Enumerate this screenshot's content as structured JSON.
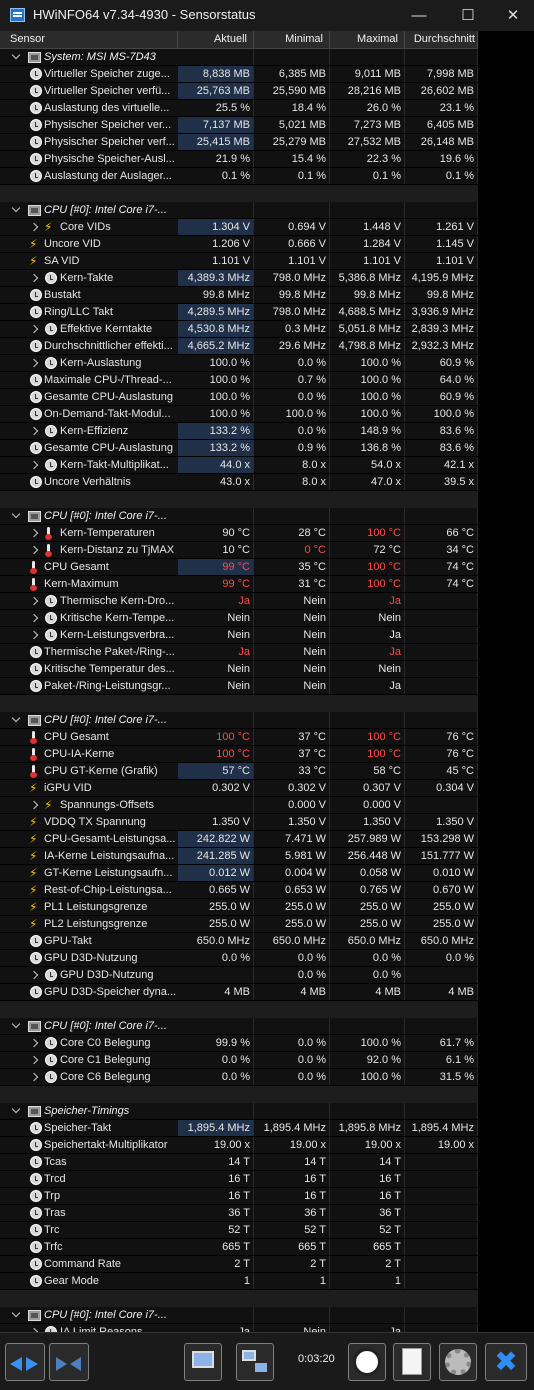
{
  "window": {
    "title": "HWiNFO64 v7.34-4930 - Sensorstatus",
    "minimize_glyph": "—",
    "maximize_glyph": "☐",
    "close_glyph": "✕"
  },
  "columns": [
    "Sensor",
    "Aktuell",
    "Minimal",
    "Maximal",
    "Durchschnitt"
  ],
  "rows": [
    {
      "kind": "group",
      "name": "System: MSI MS-7D43"
    },
    {
      "kind": "item",
      "icon": "clock-icon",
      "name": "Virtueller Speicher zuge...",
      "v": [
        "8,838 MB",
        "6,385 MB",
        "9,011 MB",
        "7,998 MB"
      ],
      "hl": true
    },
    {
      "kind": "item",
      "icon": "clock-icon",
      "name": "Virtueller Speicher verfü...",
      "v": [
        "25,763 MB",
        "25,590 MB",
        "28,216 MB",
        "26,602 MB"
      ],
      "hl": true
    },
    {
      "kind": "item",
      "icon": "clock-icon",
      "name": "Auslastung des virtuelle...",
      "v": [
        "25.5 %",
        "18.4 %",
        "26.0 %",
        "23.1 %"
      ]
    },
    {
      "kind": "item",
      "icon": "clock-icon",
      "name": "Physischer Speicher ver...",
      "v": [
        "7,137 MB",
        "5,021 MB",
        "7,273 MB",
        "6,405 MB"
      ],
      "hl": true
    },
    {
      "kind": "item",
      "icon": "clock-icon",
      "name": "Physischer Speicher verf...",
      "v": [
        "25,415 MB",
        "25,279 MB",
        "27,532 MB",
        "26,148 MB"
      ],
      "hl": true
    },
    {
      "kind": "item",
      "icon": "clock-icon",
      "name": "Physische Speicher-Ausl...",
      "v": [
        "21.9 %",
        "15.4 %",
        "22.3 %",
        "19.6 %"
      ]
    },
    {
      "kind": "item",
      "icon": "clock-icon",
      "name": "Auslastung der Auslager...",
      "v": [
        "0.1 %",
        "0.1 %",
        "0.1 %",
        "0.1 %"
      ]
    },
    {
      "kind": "sep"
    },
    {
      "kind": "group",
      "name": "CPU [#0]: Intel Core i7-..."
    },
    {
      "kind": "sub",
      "icon": "bolt-icon",
      "name": "Core VIDs",
      "v": [
        "1.304 V",
        "0.694 V",
        "1.448 V",
        "1.261 V"
      ],
      "hl": true
    },
    {
      "kind": "item",
      "icon": "bolt-icon",
      "name": "Uncore VID",
      "v": [
        "1.206 V",
        "0.666 V",
        "1.284 V",
        "1.145 V"
      ]
    },
    {
      "kind": "item",
      "icon": "bolt-icon",
      "name": "SA VID",
      "v": [
        "1.101 V",
        "1.101 V",
        "1.101 V",
        "1.101 V"
      ]
    },
    {
      "kind": "sub",
      "icon": "clock-icon",
      "name": "Kern-Takte",
      "v": [
        "4,389.3 MHz",
        "798.0 MHz",
        "5,386.8 MHz",
        "4,195.9 MHz"
      ],
      "hl": true
    },
    {
      "kind": "item",
      "icon": "clock-icon",
      "name": "Bustakt",
      "v": [
        "99.8 MHz",
        "99.8 MHz",
        "99.8 MHz",
        "99.8 MHz"
      ]
    },
    {
      "kind": "item",
      "icon": "clock-icon",
      "name": "Ring/LLC Takt",
      "v": [
        "4,289.5 MHz",
        "798.0 MHz",
        "4,688.5 MHz",
        "3,936.9 MHz"
      ],
      "hl": true
    },
    {
      "kind": "sub",
      "icon": "clock-icon",
      "name": "Effektive Kerntakte",
      "v": [
        "4,530.8 MHz",
        "0.3 MHz",
        "5,051.8 MHz",
        "2,839.3 MHz"
      ],
      "hl": true
    },
    {
      "kind": "item",
      "icon": "clock-icon",
      "name": "Durchschnittlicher effekti...",
      "v": [
        "4,665.2 MHz",
        "29.6 MHz",
        "4,798.8 MHz",
        "2,932.3 MHz"
      ],
      "hl": true
    },
    {
      "kind": "sub",
      "icon": "clock-icon",
      "name": "Kern-Auslastung",
      "v": [
        "100.0 %",
        "0.0 %",
        "100.0 %",
        "60.9 %"
      ]
    },
    {
      "kind": "item",
      "icon": "clock-icon",
      "name": "Maximale CPU-/Thread-...",
      "v": [
        "100.0 %",
        "0.7 %",
        "100.0 %",
        "64.0 %"
      ]
    },
    {
      "kind": "item",
      "icon": "clock-icon",
      "name": "Gesamte CPU-Auslastung",
      "v": [
        "100.0 %",
        "0.0 %",
        "100.0 %",
        "60.9 %"
      ]
    },
    {
      "kind": "item",
      "icon": "clock-icon",
      "name": "On-Demand-Takt-Modul...",
      "v": [
        "100.0 %",
        "100.0 %",
        "100.0 %",
        "100.0 %"
      ]
    },
    {
      "kind": "sub",
      "icon": "clock-icon",
      "name": "Kern-Effizienz",
      "v": [
        "133.2 %",
        "0.0 %",
        "148.9 %",
        "83.6 %"
      ],
      "hl": true
    },
    {
      "kind": "item",
      "icon": "clock-icon",
      "name": "Gesamte CPU-Auslastung",
      "v": [
        "133.2 %",
        "0.9 %",
        "136.8 %",
        "83.6 %"
      ],
      "hl": true
    },
    {
      "kind": "sub",
      "icon": "clock-icon",
      "name": "Kern-Takt-Multiplikat...",
      "v": [
        "44.0 x",
        "8.0 x",
        "54.0 x",
        "42.1 x"
      ],
      "hl": true
    },
    {
      "kind": "item",
      "icon": "clock-icon",
      "name": "Uncore Verhältnis",
      "v": [
        "43.0 x",
        "8.0 x",
        "47.0 x",
        "39.5 x"
      ]
    },
    {
      "kind": "sep"
    },
    {
      "kind": "group",
      "name": "CPU [#0]: Intel Core i7-..."
    },
    {
      "kind": "sub",
      "icon": "thermometer-icon",
      "name": "Kern-Temperaturen",
      "v": [
        "90 °C",
        "28 °C",
        "100 °C",
        "66 °C"
      ],
      "red": [
        2
      ]
    },
    {
      "kind": "sub",
      "icon": "thermometer-icon",
      "name": "Kern-Distanz zu TjMAX",
      "v": [
        "10 °C",
        "0 °C",
        "72 °C",
        "34 °C"
      ],
      "red": [
        1
      ]
    },
    {
      "kind": "item",
      "icon": "thermometer-icon",
      "name": "CPU Gesamt",
      "v": [
        "99 °C",
        "35 °C",
        "100 °C",
        "74 °C"
      ],
      "red": [
        0,
        2
      ],
      "hl": true
    },
    {
      "kind": "item",
      "icon": "thermometer-icon",
      "name": "Kern-Maximum",
      "v": [
        "99 °C",
        "31 °C",
        "100 °C",
        "74 °C"
      ],
      "red": [
        0,
        2
      ]
    },
    {
      "kind": "sub",
      "icon": "clock-icon",
      "name": "Thermische Kern-Dro...",
      "v": [
        "Ja",
        "Nein",
        "Ja",
        ""
      ],
      "red": [
        0,
        2
      ]
    },
    {
      "kind": "sub",
      "icon": "clock-icon",
      "name": "Kritische Kern-Tempe...",
      "v": [
        "Nein",
        "Nein",
        "Nein",
        ""
      ]
    },
    {
      "kind": "sub",
      "icon": "clock-icon",
      "name": "Kern-Leistungsverbra...",
      "v": [
        "Nein",
        "Nein",
        "Ja",
        ""
      ]
    },
    {
      "kind": "item",
      "icon": "clock-icon",
      "name": "Thermische Paket-/Ring-...",
      "v": [
        "Ja",
        "Nein",
        "Ja",
        ""
      ],
      "red": [
        0,
        2
      ]
    },
    {
      "kind": "item",
      "icon": "clock-icon",
      "name": "Kritische Temperatur des...",
      "v": [
        "Nein",
        "Nein",
        "Nein",
        ""
      ]
    },
    {
      "kind": "item",
      "icon": "clock-icon",
      "name": "Paket-/Ring-Leistungsgr...",
      "v": [
        "Nein",
        "Nein",
        "Ja",
        ""
      ]
    },
    {
      "kind": "sep"
    },
    {
      "kind": "group",
      "name": "CPU [#0]: Intel Core i7-..."
    },
    {
      "kind": "item",
      "icon": "thermometer-icon",
      "name": "CPU Gesamt",
      "v": [
        "100 °C",
        "37 °C",
        "100 °C",
        "76 °C"
      ],
      "red": [
        0,
        2
      ]
    },
    {
      "kind": "item",
      "icon": "thermometer-icon",
      "name": "CPU-IA-Kerne",
      "v": [
        "100 °C",
        "37 °C",
        "100 °C",
        "76 °C"
      ],
      "red": [
        0,
        2
      ]
    },
    {
      "kind": "item",
      "icon": "thermometer-icon",
      "name": "CPU GT-Kerne (Grafik)",
      "v": [
        "57 °C",
        "33 °C",
        "58 °C",
        "45 °C"
      ],
      "hl": true
    },
    {
      "kind": "item",
      "icon": "bolt-icon",
      "name": "iGPU VID",
      "v": [
        "0.302 V",
        "0.302 V",
        "0.307 V",
        "0.304 V"
      ]
    },
    {
      "kind": "sub",
      "icon": "bolt-icon",
      "name": "Spannungs-Offsets",
      "v": [
        "",
        "0.000 V",
        "0.000 V",
        ""
      ]
    },
    {
      "kind": "item",
      "icon": "bolt-icon",
      "name": "VDDQ TX Spannung",
      "v": [
        "1.350 V",
        "1.350 V",
        "1.350 V",
        "1.350 V"
      ]
    },
    {
      "kind": "item",
      "icon": "bolt-icon",
      "name": "CPU-Gesamt-Leistungsa...",
      "v": [
        "242.822 W",
        "7.471 W",
        "257.989 W",
        "153.298 W"
      ],
      "hl": true
    },
    {
      "kind": "item",
      "icon": "bolt-icon",
      "name": "IA-Kerne Leistungsaufna...",
      "v": [
        "241.285 W",
        "5.981 W",
        "256.448 W",
        "151.777 W"
      ],
      "hl": true
    },
    {
      "kind": "item",
      "icon": "bolt-icon",
      "name": "GT-Kerne Leistungsaufn...",
      "v": [
        "0.012 W",
        "0.004 W",
        "0.058 W",
        "0.010 W"
      ],
      "hl": true
    },
    {
      "kind": "item",
      "icon": "bolt-icon",
      "name": "Rest-of-Chip-Leistungsa...",
      "v": [
        "0.665 W",
        "0.653 W",
        "0.765 W",
        "0.670 W"
      ]
    },
    {
      "kind": "item",
      "icon": "bolt-icon",
      "name": "PL1 Leistungsgrenze",
      "v": [
        "255.0 W",
        "255.0 W",
        "255.0 W",
        "255.0 W"
      ]
    },
    {
      "kind": "item",
      "icon": "bolt-icon",
      "name": "PL2 Leistungsgrenze",
      "v": [
        "255.0 W",
        "255.0 W",
        "255.0 W",
        "255.0 W"
      ]
    },
    {
      "kind": "item",
      "icon": "clock-icon",
      "name": "GPU-Takt",
      "v": [
        "650.0 MHz",
        "650.0 MHz",
        "650.0 MHz",
        "650.0 MHz"
      ]
    },
    {
      "kind": "item",
      "icon": "clock-icon",
      "name": "GPU D3D-Nutzung",
      "v": [
        "0.0 %",
        "0.0 %",
        "0.0 %",
        "0.0 %"
      ]
    },
    {
      "kind": "sub",
      "icon": "clock-icon",
      "name": "GPU D3D-Nutzung",
      "v": [
        "",
        "0.0 %",
        "0.0 %",
        ""
      ]
    },
    {
      "kind": "item",
      "icon": "clock-icon",
      "name": "GPU D3D-Speicher dyna...",
      "v": [
        "4 MB",
        "4 MB",
        "4 MB",
        "4 MB"
      ]
    },
    {
      "kind": "sep"
    },
    {
      "kind": "group",
      "name": "CPU [#0]: Intel Core i7-..."
    },
    {
      "kind": "sub",
      "icon": "clock-icon",
      "name": "Core C0 Belegung",
      "v": [
        "99.9 %",
        "0.0 %",
        "100.0 %",
        "61.7 %"
      ]
    },
    {
      "kind": "sub",
      "icon": "clock-icon",
      "name": "Core C1 Belegung",
      "v": [
        "0.0 %",
        "0.0 %",
        "92.0 %",
        "6.1 %"
      ]
    },
    {
      "kind": "sub",
      "icon": "clock-icon",
      "name": "Core C6 Belegung",
      "v": [
        "0.0 %",
        "0.0 %",
        "100.0 %",
        "31.5 %"
      ]
    },
    {
      "kind": "sep"
    },
    {
      "kind": "group",
      "name": "Speicher-Timings"
    },
    {
      "kind": "item",
      "icon": "clock-icon",
      "name": "Speicher-Takt",
      "v": [
        "1,895.4 MHz",
        "1,895.4 MHz",
        "1,895.8 MHz",
        "1,895.4 MHz"
      ],
      "hl": true
    },
    {
      "kind": "item",
      "icon": "clock-icon",
      "name": "Speichertakt-Multiplikator",
      "v": [
        "19.00 x",
        "19.00 x",
        "19.00 x",
        "19.00 x"
      ]
    },
    {
      "kind": "item",
      "icon": "clock-icon",
      "name": "Tcas",
      "v": [
        "14 T",
        "14 T",
        "14 T",
        ""
      ]
    },
    {
      "kind": "item",
      "icon": "clock-icon",
      "name": "Trcd",
      "v": [
        "16 T",
        "16 T",
        "16 T",
        ""
      ]
    },
    {
      "kind": "item",
      "icon": "clock-icon",
      "name": "Trp",
      "v": [
        "16 T",
        "16 T",
        "16 T",
        ""
      ]
    },
    {
      "kind": "item",
      "icon": "clock-icon",
      "name": "Tras",
      "v": [
        "36 T",
        "36 T",
        "36 T",
        ""
      ]
    },
    {
      "kind": "item",
      "icon": "clock-icon",
      "name": "Trc",
      "v": [
        "52 T",
        "52 T",
        "52 T",
        ""
      ]
    },
    {
      "kind": "item",
      "icon": "clock-icon",
      "name": "Trfc",
      "v": [
        "665 T",
        "665 T",
        "665 T",
        ""
      ]
    },
    {
      "kind": "item",
      "icon": "clock-icon",
      "name": "Command Rate",
      "v": [
        "2 T",
        "2 T",
        "2 T",
        ""
      ]
    },
    {
      "kind": "item",
      "icon": "clock-icon",
      "name": "Gear Mode",
      "v": [
        "1",
        "1",
        "1",
        ""
      ]
    },
    {
      "kind": "sep"
    },
    {
      "kind": "group",
      "name": "CPU [#0]: Intel Core i7-..."
    },
    {
      "kind": "sub",
      "icon": "clock-icon",
      "name": "IA Limit Reasons",
      "v": [
        "Ja",
        "Nein",
        "Ja",
        ""
      ]
    }
  ],
  "toolbar": {
    "elapsed_time": "0:03:20",
    "buttons": [
      "nav-arrows-icon",
      "collapse-arrows-icon",
      "monitor-icon",
      "network-icon",
      "stopwatch-icon",
      "report-icon",
      "settings-gear-icon",
      "close-x-icon"
    ]
  },
  "colors": {
    "highlight": "#203048",
    "alert": "#ff4a4a",
    "background": "#000000"
  }
}
